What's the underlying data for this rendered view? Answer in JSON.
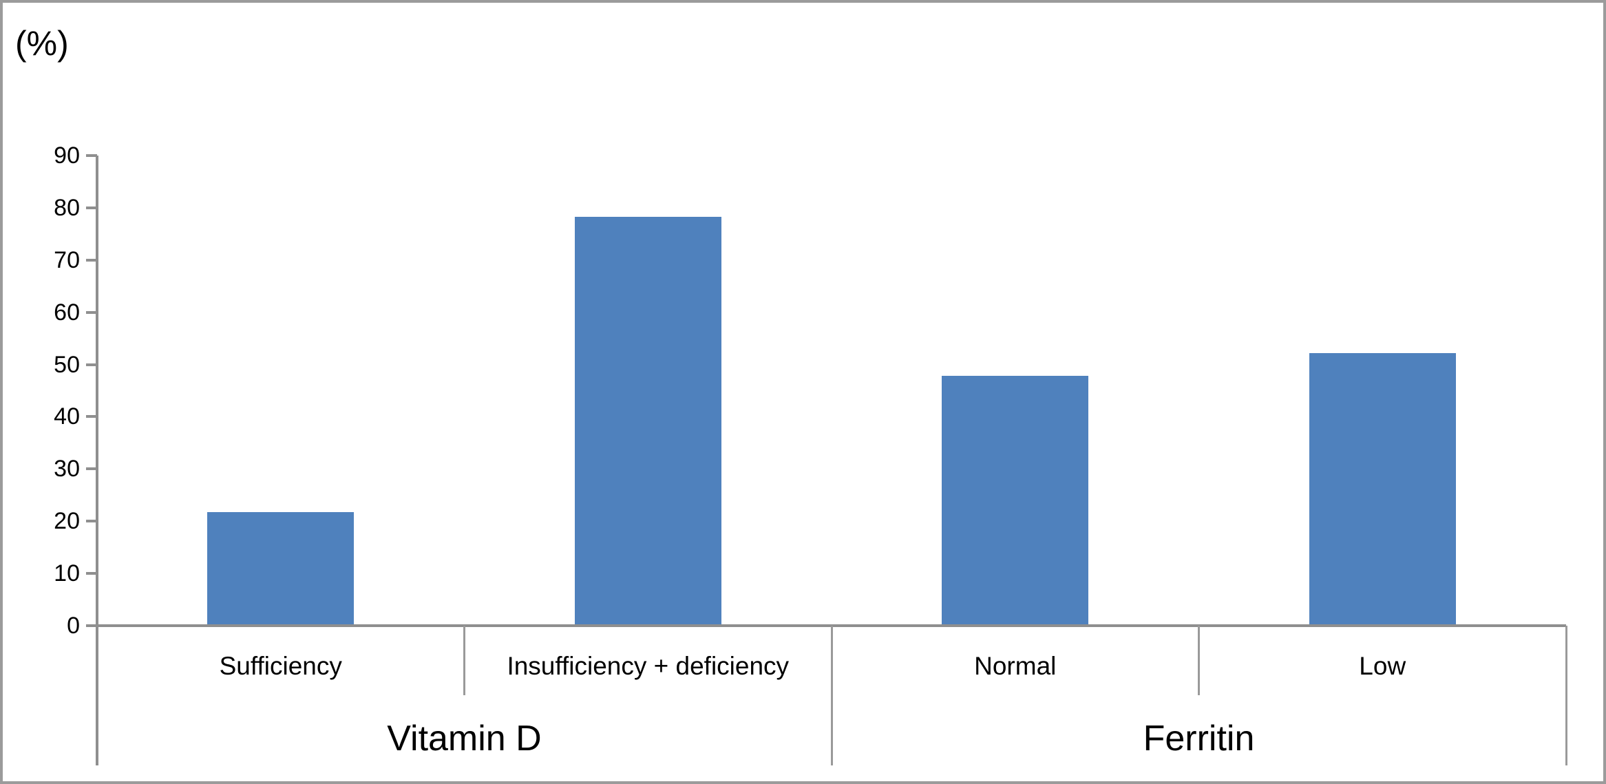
{
  "chart_data": {
    "type": "bar",
    "title": "",
    "ylabel": "(%)",
    "xlabel": "",
    "ylim": [
      0,
      90
    ],
    "yticks": [
      0,
      10,
      20,
      30,
      40,
      50,
      60,
      70,
      80,
      90
    ],
    "categories": [
      "Sufficiency",
      "Insufficiency + deficiency",
      "Normal",
      "Low"
    ],
    "values": [
      21.7,
      78.3,
      47.8,
      52.2
    ],
    "groups": [
      {
        "label": "Vitamin D",
        "start": 0,
        "end": 2
      },
      {
        "label": "Ferritin",
        "start": 2,
        "end": 4
      }
    ],
    "grid": false,
    "legend": false,
    "colors": {
      "bar": "#4F81BD",
      "axis": "#8F8F8F",
      "divider": "#9A9A9A",
      "text": "#000000",
      "frame_border": "#9B9B9B",
      "background": "#FFFFFF"
    }
  }
}
